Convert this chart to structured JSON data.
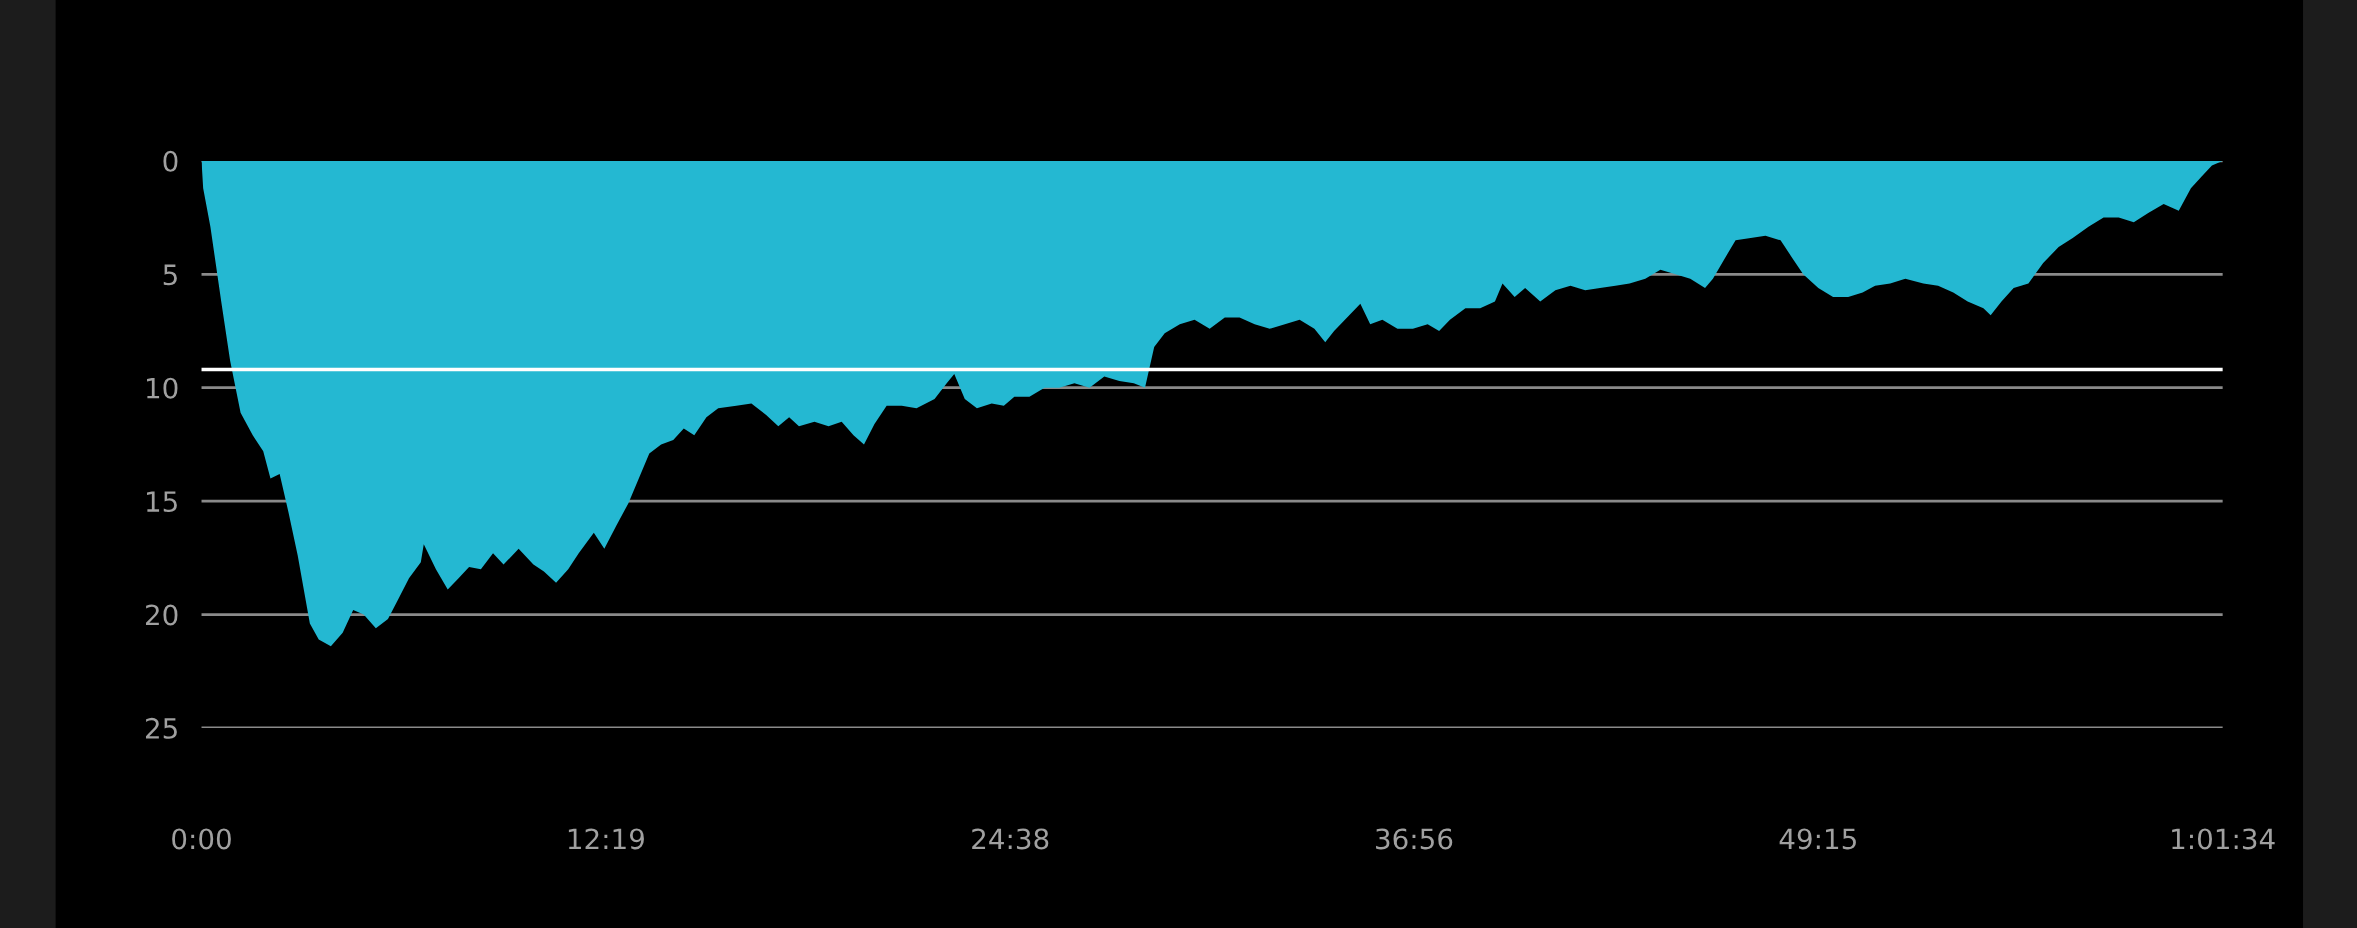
{
  "chart_data": {
    "type": "area",
    "x": [
      0,
      0.05,
      0.27,
      0.6,
      0.87,
      1.19,
      1.56,
      1.88,
      2.1,
      2.38,
      2.65,
      2.93,
      3.3,
      3.57,
      3.94,
      4.3,
      4.62,
      4.94,
      5.31,
      5.68,
      6.0,
      6.32,
      6.68,
      6.77,
      7.14,
      7.5,
      7.83,
      8.15,
      8.51,
      8.88,
      9.2,
      9.66,
      10.11,
      10.43,
      10.8,
      11.17,
      11.49,
      11.95,
      12.27,
      12.63,
      13.0,
      13.32,
      13.64,
      14.0,
      14.37,
      14.69,
      15.01,
      15.38,
      15.74,
      16.29,
      16.75,
      17.2,
      17.57,
      17.9,
      18.2,
      18.67,
      19.1,
      19.5,
      19.86,
      20.18,
      20.5,
      20.87,
      21.33,
      21.78,
      22.33,
      22.7,
      22.93,
      23.25,
      23.62,
      24.07,
      24.44,
      24.76,
      25.22,
      25.68,
      26.13,
      26.59,
      27.05,
      27.5,
      27.96,
      28.4,
      28.74,
      29.02,
      29.34,
      29.8,
      30.25,
      30.71,
      31.17,
      31.62,
      32.08,
      32.54,
      33.0,
      33.45,
      33.9,
      34.23,
      34.5,
      34.83,
      35.3,
      35.6,
      35.97,
      36.43,
      36.9,
      37.35,
      37.7,
      38.03,
      38.5,
      38.95,
      39.4,
      39.63,
      40.0,
      40.32,
      40.78,
      41.24,
      41.7,
      42.15,
      42.6,
      43.07,
      43.5,
      43.98,
      44.44,
      44.9,
      45.35,
      45.8,
      46.04,
      46.4,
      46.73,
      47.19,
      47.64,
      48.1,
      48.42,
      48.79,
      49.25,
      49.7,
      50.16,
      50.6,
      50.98,
      51.44,
      51.9,
      52.45,
      52.9,
      53.36,
      53.8,
      54.28,
      54.5,
      54.83,
      55.2,
      55.65,
      56.1,
      56.57,
      57.0,
      57.48,
      57.94,
      58.4,
      58.86,
      59.3,
      59.77,
      60.23,
      60.6,
      60.92,
      61.24,
      61.567
    ],
    "series": [
      {
        "color": "#24b8d2",
        "values": [
          0,
          1.2,
          2.9,
          6.2,
          8.8,
          11.1,
          12.1,
          12.8,
          14.0,
          13.8,
          15.5,
          17.4,
          20.4,
          21.1,
          21.4,
          20.8,
          19.8,
          20.0,
          20.6,
          20.2,
          19.3,
          18.4,
          17.7,
          16.9,
          18.0,
          18.9,
          18.4,
          17.9,
          18.0,
          17.3,
          17.8,
          17.1,
          17.8,
          18.1,
          18.6,
          18.0,
          17.3,
          16.4,
          17.1,
          16.1,
          15.1,
          14.0,
          12.9,
          12.5,
          12.3,
          11.8,
          12.1,
          11.3,
          10.9,
          10.8,
          10.7,
          11.2,
          11.7,
          11.3,
          11.7,
          11.5,
          11.7,
          11.5,
          12.1,
          12.5,
          11.6,
          10.8,
          10.8,
          10.9,
          10.5,
          9.8,
          9.4,
          10.5,
          10.9,
          10.7,
          10.8,
          10.4,
          10.4,
          10.0,
          10.0,
          9.8,
          10.0,
          9.5,
          9.7,
          9.8,
          10.0,
          8.2,
          7.6,
          7.2,
          7.0,
          7.4,
          6.9,
          6.9,
          7.2,
          7.4,
          7.2,
          7.0,
          7.4,
          8.0,
          7.5,
          7.0,
          6.3,
          7.2,
          7.0,
          7.4,
          7.4,
          7.2,
          7.5,
          7.0,
          6.5,
          6.5,
          6.2,
          5.4,
          6.0,
          5.6,
          6.2,
          5.7,
          5.5,
          5.7,
          5.6,
          5.5,
          5.4,
          5.2,
          4.8,
          5.0,
          5.2,
          5.6,
          5.2,
          4.3,
          3.5,
          3.4,
          3.3,
          3.5,
          4.2,
          5.0,
          5.6,
          6.0,
          6.0,
          5.8,
          5.5,
          5.4,
          5.2,
          5.4,
          5.5,
          5.8,
          6.2,
          6.5,
          6.8,
          6.2,
          5.6,
          5.4,
          4.5,
          3.8,
          3.4,
          2.9,
          2.5,
          2.5,
          2.7,
          2.3,
          1.9,
          2.2,
          1.2,
          0.7,
          0.2,
          0
        ]
      }
    ],
    "xlim": [
      0,
      61.567
    ],
    "xticks": [
      {
        "value": 0,
        "label": "0:00"
      },
      {
        "value": 12.317,
        "label": "12:19"
      },
      {
        "value": 24.633,
        "label": "24:38"
      },
      {
        "value": 36.933,
        "label": "36:56"
      },
      {
        "value": 49.25,
        "label": "49:15"
      },
      {
        "value": 61.567,
        "label": "1:01:34"
      }
    ],
    "ylim": [
      25,
      0
    ],
    "yticks": [
      0,
      5,
      10,
      15,
      20,
      25
    ],
    "grid": "y",
    "ref_lines": [
      {
        "axis": "y",
        "value": 9.2,
        "color": "#ffffff"
      }
    ]
  }
}
